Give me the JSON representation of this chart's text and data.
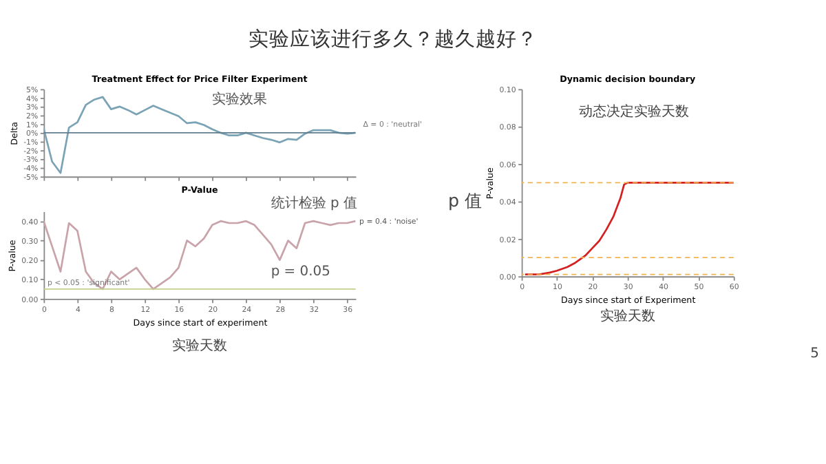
{
  "chart_data": [
    {
      "type": "other",
      "title": "实验应该进行多久？越久越好？",
      "annotations": [
        "5"
      ]
    },
    {
      "type": "line",
      "title": "Treatment Effect for Price Filter Experiment",
      "ylabel": "Delta",
      "x": [
        0,
        1,
        2,
        3,
        4,
        5,
        6,
        7,
        8,
        9,
        10,
        11,
        12,
        13,
        14,
        15,
        16,
        17,
        18,
        19,
        20,
        21,
        22,
        23,
        24,
        25,
        26,
        27,
        28,
        29,
        30,
        31,
        32,
        33,
        34,
        35,
        36,
        37
      ],
      "series": [
        {
          "color": "#7aa3b5",
          "values": [
            0.5,
            -3.3,
            -4.6,
            0.6,
            1.2,
            3.2,
            3.8,
            4.1,
            2.7,
            3.0,
            2.6,
            2.1,
            2.6,
            3.1,
            2.7,
            2.3,
            1.9,
            1.1,
            1.2,
            0.9,
            0.4,
            0.0,
            -0.3,
            -0.3,
            0.0,
            -0.3,
            -0.6,
            -0.8,
            -1.1,
            -0.7,
            -0.8,
            -0.1,
            0.3,
            0.3,
            0.3,
            0.0,
            -0.1,
            0.0
          ]
        }
      ],
      "xlim": [
        0,
        37
      ],
      "xticks": [
        0,
        4,
        8,
        12,
        16,
        20,
        24,
        28,
        32,
        36
      ],
      "ylim": [
        -5,
        5
      ],
      "yticks": [
        {
          "value": -5,
          "label": "-5%"
        },
        {
          "value": -4,
          "label": "-4%"
        },
        {
          "value": -3,
          "label": "-3%"
        },
        {
          "value": -2,
          "label": "-2%"
        },
        {
          "value": -1,
          "label": "-1%"
        },
        {
          "value": 0,
          "label": "0%"
        },
        {
          "value": 1,
          "label": "1%"
        },
        {
          "value": 2,
          "label": "2%"
        },
        {
          "value": 3,
          "label": "3%"
        },
        {
          "value": 4,
          "label": "4%"
        },
        {
          "value": 5,
          "label": "5%"
        }
      ],
      "tick_labels": "y",
      "grid": false,
      "legend": false,
      "ref_lines": [
        {
          "axis": "y",
          "value": 0,
          "label": "Δ = 0 : 'neutral'",
          "color": "#5f7d8c",
          "line_style": "solid"
        }
      ],
      "annotations": [
        {
          "text": "实验效果",
          "x": 17,
          "y": 1.8
        }
      ]
    },
    {
      "type": "line",
      "title": "P-Value",
      "ylabel": "P-value",
      "xlabel": "Days since start of experiment",
      "x": [
        0,
        1,
        2,
        3,
        4,
        5,
        6,
        7,
        8,
        9,
        10,
        11,
        12,
        13,
        14,
        15,
        16,
        17,
        18,
        19,
        20,
        21,
        22,
        23,
        24,
        25,
        26,
        27,
        28,
        29,
        30,
        31,
        32,
        33,
        34,
        35,
        36,
        37
      ],
      "series": [
        {
          "color": "#c9a3aa",
          "values": [
            0.4,
            0.27,
            0.14,
            0.39,
            0.35,
            0.14,
            0.08,
            0.05,
            0.14,
            0.1,
            0.13,
            0.16,
            0.1,
            0.05,
            0.08,
            0.11,
            0.16,
            0.3,
            0.27,
            0.31,
            0.38,
            0.4,
            0.39,
            0.39,
            0.4,
            0.38,
            0.33,
            0.28,
            0.2,
            0.3,
            0.26,
            0.39,
            0.4,
            0.39,
            0.38,
            0.39,
            0.39,
            0.4
          ]
        }
      ],
      "xlim": [
        0,
        37
      ],
      "xticks": [
        0,
        4,
        8,
        12,
        16,
        20,
        24,
        28,
        32,
        36
      ],
      "ylim": [
        0,
        0.45
      ],
      "yticks": [
        {
          "value": 0,
          "label": "0.00"
        },
        {
          "value": 0.1,
          "label": "0.10"
        },
        {
          "value": 0.2,
          "label": "0.20"
        },
        {
          "value": 0.3,
          "label": "0.30"
        },
        {
          "value": 0.4,
          "label": "0.40"
        }
      ],
      "grid": false,
      "legend": false,
      "ref_lines": [
        {
          "axis": "y",
          "value": 0.05,
          "label": "p < 0.05 : 'significant'",
          "color": "#c5cf8a",
          "line_style": "solid"
        }
      ],
      "annotations": [
        {
          "text": "p = 0.4 : 'noise'",
          "x": 37,
          "y": 0.4
        },
        {
          "text": "统计检验 p 值",
          "x": 24,
          "y": 0.4
        },
        {
          "text": "p = 0.05",
          "x": 24,
          "y": 0.05
        },
        "实验天数"
      ]
    },
    {
      "type": "line",
      "title": "Dynamic decision boundary",
      "ylabel": "P-value",
      "xlabel": "Days since start of Experiment",
      "x": [
        1,
        5,
        8,
        10,
        13,
        15,
        18,
        20,
        22,
        24,
        26,
        28,
        29,
        30,
        60
      ],
      "series": [
        {
          "color": "#d42020",
          "values": [
            0.001,
            0.001,
            0.002,
            0.003,
            0.005,
            0.007,
            0.011,
            0.015,
            0.019,
            0.025,
            0.032,
            0.042,
            0.049,
            0.05,
            0.05
          ]
        }
      ],
      "xlim": [
        0,
        60
      ],
      "xticks": [
        0,
        10,
        20,
        30,
        40,
        50,
        60
      ],
      "ylim": [
        0,
        0.1
      ],
      "yticks": [
        {
          "value": 0,
          "label": "0.00"
        },
        {
          "value": 0.02,
          "label": "0.02"
        },
        {
          "value": 0.04,
          "label": "0.04"
        },
        {
          "value": 0.06,
          "label": "0.06"
        },
        {
          "value": 0.08,
          "label": "0.08"
        },
        {
          "value": 0.1,
          "label": "0.10"
        }
      ],
      "grid": false,
      "legend": false,
      "ref_lines": [
        {
          "axis": "y",
          "value": 0.05,
          "color": "#f0b450",
          "line_style": "dashed"
        },
        {
          "axis": "y",
          "value": 0.01,
          "color": "#f0b450",
          "line_style": "dashed"
        },
        {
          "axis": "y",
          "value": 0.001,
          "color": "#f0b450",
          "line_style": "dashed"
        }
      ],
      "annotations": [
        "动态决定实验天数",
        "p 值",
        "实验天数"
      ]
    }
  ]
}
